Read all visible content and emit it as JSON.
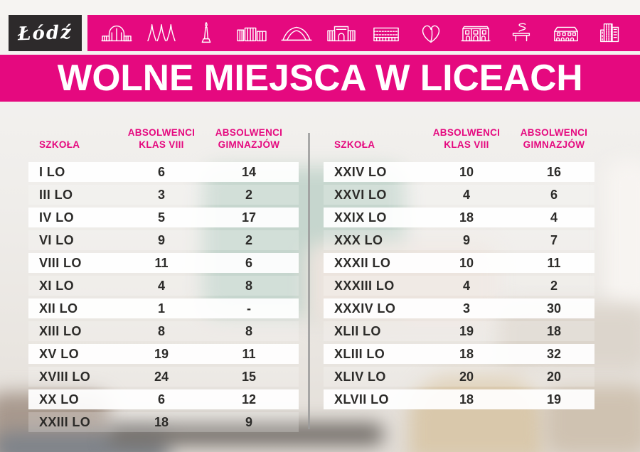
{
  "colors": {
    "pink": "#e5097f",
    "logo_box": "#2d2a2b",
    "text": "#2c2b29",
    "divider": "#9b9b9b",
    "chalkboard": "#c6d6ce"
  },
  "logo": {
    "text": "Łódź"
  },
  "icons": [
    "train-station",
    "arch-pavilion",
    "monument",
    "ec1-buildings",
    "arena",
    "gate-building",
    "striped-building",
    "leaf-heart",
    "palace",
    "spiral-sculpture",
    "arcade-house",
    "office-building"
  ],
  "headers": {
    "school": "SZKOŁA",
    "absolwenci": "ABSOLWENCI",
    "klas_viii": "KLAS VIII",
    "gimnazjow": "GIMNAZJÓW"
  },
  "chart_data": {
    "type": "table",
    "title": "WOLNE MIEJSCA W LICEACH",
    "columns": [
      "SZKOŁA",
      "ABSOLWENCI KLAS VIII",
      "ABSOLWENCI GIMNAZJÓW"
    ],
    "legend_position": "none",
    "tables": [
      {
        "name": "left",
        "rows": [
          [
            "I LO",
            "6",
            "14"
          ],
          [
            "III LO",
            "3",
            "2"
          ],
          [
            "IV LO",
            "5",
            "17"
          ],
          [
            "VI LO",
            "9",
            "2"
          ],
          [
            "VIII LO",
            "11",
            "6"
          ],
          [
            "XI LO",
            "4",
            "8"
          ],
          [
            "XII LO",
            "1",
            "-"
          ],
          [
            "XIII LO",
            "8",
            "8"
          ],
          [
            "XV LO",
            "19",
            "11"
          ],
          [
            "XVIII LO",
            "24",
            "15"
          ],
          [
            "XX LO",
            "6",
            "12"
          ],
          [
            "XXIII LO",
            "18",
            "9"
          ]
        ]
      },
      {
        "name": "right",
        "rows": [
          [
            "XXIV LO",
            "10",
            "16"
          ],
          [
            "XXVI LO",
            "4",
            "6"
          ],
          [
            "XXIX LO",
            "18",
            "4"
          ],
          [
            "XXX LO",
            "9",
            "7"
          ],
          [
            "XXXII LO",
            "10",
            "11"
          ],
          [
            "XXXIII LO",
            "4",
            "2"
          ],
          [
            "XXXIV LO",
            "3",
            "30"
          ],
          [
            "XLII LO",
            "19",
            "18"
          ],
          [
            "XLIII LO",
            "18",
            "32"
          ],
          [
            "XLIV LO",
            "20",
            "20"
          ],
          [
            "XLVII LO",
            "18",
            "19"
          ]
        ]
      }
    ]
  }
}
